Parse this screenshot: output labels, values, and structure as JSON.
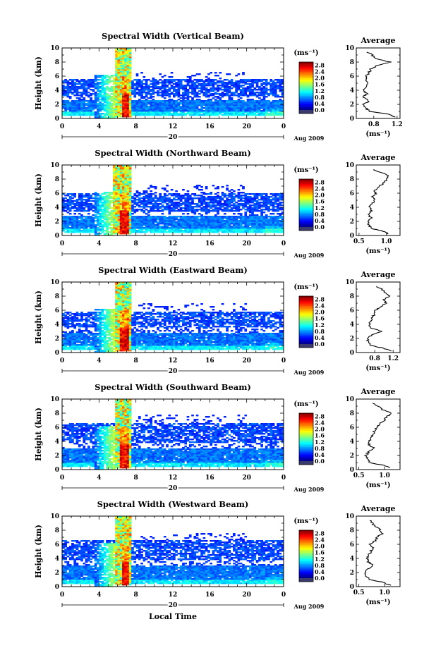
{
  "figure": {
    "xlabel": "Local Time",
    "date_label": "Aug 2009",
    "day_label": "20",
    "cbar_unit": "(ms⁻¹)",
    "avg_title": "Average",
    "avg_xlabel": "(ms⁻¹)"
  },
  "chart_data": [
    {
      "type": "heatmap",
      "title": "Spectral Width (Vertical Beam)",
      "ylabel": "Height (km)",
      "xlim": [
        0,
        24
      ],
      "ylim": [
        0,
        10
      ],
      "xticks": [
        "0",
        "4",
        "8",
        "12",
        "16",
        "20",
        "0"
      ],
      "yticks": [
        "0",
        "2",
        "4",
        "6",
        "8",
        "10"
      ],
      "colorbar": {
        "ticks": [
          "0.0",
          "0.4",
          "0.8",
          "1.2",
          "1.6",
          "2.0",
          "2.4",
          "2.8"
        ],
        "range": [
          0,
          3.0
        ]
      },
      "features": {
        "peak_band_hours": [
          5.8,
          7.5
        ],
        "upper_top_km": 5.5,
        "upper_band_km": [
          3.3,
          5.5
        ],
        "low_band_km": [
          0.4,
          2.6
        ]
      },
      "profile": {
        "title": "Average",
        "xlabel": "(ms⁻¹)",
        "xlim": [
          0.5,
          1.25
        ],
        "xticks": [
          "0.8",
          "1.2"
        ],
        "yticks": [
          "0",
          "2",
          "4",
          "6",
          "8",
          "10"
        ],
        "height_km": [
          0.2,
          0.6,
          1.0,
          1.5,
          2.0,
          2.5,
          3.0,
          3.5,
          4.0,
          4.5,
          5.0,
          5.5,
          6.0,
          6.5,
          7.0,
          7.5,
          8.0,
          8.5,
          9.0,
          9.5
        ],
        "width_ms": [
          1.18,
          1.05,
          0.72,
          0.66,
          0.63,
          0.72,
          0.62,
          0.68,
          0.63,
          0.66,
          0.71,
          0.67,
          0.66,
          0.72,
          0.75,
          0.86,
          1.08,
          0.83,
          0.77,
          0.68
        ]
      }
    },
    {
      "type": "heatmap",
      "title": "Spectral Width (Northward Beam)",
      "ylabel": "Height (km)",
      "xlim": [
        0,
        24
      ],
      "ylim": [
        0,
        10
      ],
      "xticks": [
        "0",
        "4",
        "8",
        "12",
        "16",
        "20",
        "0"
      ],
      "yticks": [
        "0",
        "2",
        "4",
        "6",
        "8",
        "10"
      ],
      "colorbar": {
        "ticks": [
          "0.0",
          "0.4",
          "0.8",
          "1.2",
          "1.6",
          "2.0",
          "2.4",
          "2.8"
        ],
        "range": [
          0,
          3.0
        ]
      },
      "features": {
        "peak_band_hours": [
          5.6,
          7.6
        ],
        "upper_top_km": 6.0,
        "upper_band_km": [
          3.5,
          6.0
        ],
        "low_band_km": [
          0.4,
          2.8
        ]
      },
      "profile": {
        "title": "Average",
        "xlabel": "(ms⁻¹)",
        "xlim": [
          0.45,
          1.25
        ],
        "xticks": [
          "0.5",
          "1.0"
        ],
        "yticks": [
          "0",
          "2",
          "4",
          "6",
          "8",
          "10"
        ],
        "height_km": [
          0.2,
          0.6,
          1.0,
          1.5,
          2.0,
          2.5,
          3.0,
          3.5,
          4.0,
          4.5,
          5.0,
          5.5,
          6.0,
          6.5,
          7.0,
          7.5,
          8.0,
          8.5,
          9.0,
          9.5
        ],
        "width_ms": [
          1.05,
          0.95,
          0.72,
          0.68,
          0.65,
          0.72,
          0.66,
          0.72,
          0.69,
          0.74,
          0.78,
          0.75,
          0.81,
          0.79,
          0.88,
          0.95,
          1.02,
          1.06,
          0.88,
          0.72
        ]
      }
    },
    {
      "type": "heatmap",
      "title": "Spectral Width (Eastward Beam)",
      "ylabel": "Height (km)",
      "xlim": [
        0,
        24
      ],
      "ylim": [
        0,
        10
      ],
      "xticks": [
        "0",
        "4",
        "8",
        "12",
        "16",
        "20",
        "0"
      ],
      "yticks": [
        "0",
        "2",
        "4",
        "6",
        "8",
        "10"
      ],
      "colorbar": {
        "ticks": [
          "0.0",
          "0.4",
          "0.8",
          "1.2",
          "1.6",
          "2.0",
          "2.4",
          "2.8"
        ],
        "range": [
          0,
          3.0
        ]
      },
      "features": {
        "peak_band_hours": [
          5.7,
          7.5
        ],
        "upper_top_km": 5.8,
        "upper_band_km": [
          3.6,
          5.8
        ],
        "low_band_km": [
          0.4,
          2.8
        ]
      },
      "profile": {
        "title": "Average",
        "xlabel": "(ms⁻¹)",
        "xlim": [
          0.4,
          1.35
        ],
        "xticks": [
          "0.8",
          "1.2"
        ],
        "yticks": [
          "0",
          "2",
          "4",
          "6",
          "8",
          "10"
        ],
        "height_km": [
          0.2,
          0.6,
          1.0,
          1.5,
          2.0,
          2.5,
          3.0,
          3.5,
          4.0,
          4.5,
          5.0,
          5.5,
          6.0,
          6.5,
          7.0,
          7.5,
          8.0,
          8.5,
          9.0,
          9.5
        ],
        "width_ms": [
          1.18,
          1.0,
          0.72,
          0.66,
          0.64,
          0.75,
          0.95,
          0.71,
          0.68,
          0.72,
          0.75,
          0.8,
          0.82,
          0.93,
          1.05,
          0.99,
          1.12,
          1.03,
          0.95,
          0.78
        ]
      }
    },
    {
      "type": "heatmap",
      "title": "Spectral Width (Southward Beam)",
      "ylabel": "Height (km)",
      "xlim": [
        0,
        24
      ],
      "ylim": [
        0,
        10
      ],
      "xticks": [
        "0",
        "4",
        "8",
        "12",
        "16",
        "20",
        "0"
      ],
      "yticks": [
        "0",
        "2",
        "4",
        "6",
        "8",
        "10"
      ],
      "colorbar": {
        "ticks": [
          "0.0",
          "0.4",
          "0.8",
          "1.2",
          "1.6",
          "2.0",
          "2.4",
          "2.8"
        ],
        "range": [
          0,
          3.0
        ]
      },
      "features": {
        "peak_band_hours": [
          5.7,
          7.6
        ],
        "upper_top_km": 6.6,
        "upper_band_km": [
          3.8,
          6.6
        ],
        "low_band_km": [
          0.4,
          2.9
        ]
      },
      "profile": {
        "title": "Average",
        "xlabel": "(ms⁻¹)",
        "xlim": [
          0.45,
          1.3
        ],
        "xticks": [
          "0.5",
          "1.0"
        ],
        "yticks": [
          "0",
          "2",
          "4",
          "6",
          "8",
          "10"
        ],
        "height_km": [
          0.2,
          0.6,
          1.0,
          1.5,
          2.0,
          2.5,
          3.0,
          3.5,
          4.0,
          4.5,
          5.0,
          5.5,
          6.0,
          6.5,
          7.0,
          7.5,
          8.0,
          8.5,
          9.0,
          9.5
        ],
        "width_ms": [
          1.12,
          0.98,
          0.72,
          0.66,
          0.64,
          0.69,
          0.8,
          0.7,
          0.7,
          0.74,
          0.78,
          0.8,
          0.86,
          0.9,
          0.99,
          1.05,
          1.12,
          0.96,
          0.88,
          0.74
        ]
      }
    },
    {
      "type": "heatmap",
      "title": "Spectral Width (Westward Beam)",
      "ylabel": "Height (km)",
      "xlim": [
        0,
        24
      ],
      "ylim": [
        0,
        10
      ],
      "xticks": [
        "0",
        "4",
        "8",
        "12",
        "16",
        "20",
        "0"
      ],
      "yticks": [
        "0",
        "2",
        "4",
        "6",
        "8",
        "10"
      ],
      "colorbar": {
        "ticks": [
          "0.0",
          "0.4",
          "0.8",
          "1.2",
          "1.6",
          "2.0",
          "2.4",
          "2.8"
        ],
        "range": [
          0,
          3.0
        ]
      },
      "features": {
        "peak_band_hours": [
          5.8,
          7.5
        ],
        "upper_top_km": 6.5,
        "upper_band_km": [
          3.8,
          6.5
        ],
        "low_band_km": [
          0.4,
          3.0
        ]
      },
      "profile": {
        "title": "Average",
        "xlabel": "(ms⁻¹)",
        "xlim": [
          0.45,
          1.3
        ],
        "xticks": [
          "0.5",
          "1.0"
        ],
        "yticks": [
          "0",
          "2",
          "4",
          "6",
          "8",
          "10"
        ],
        "height_km": [
          0.2,
          0.6,
          1.0,
          1.5,
          2.0,
          2.5,
          3.0,
          3.5,
          4.0,
          4.5,
          5.0,
          5.5,
          6.0,
          6.5,
          7.0,
          7.5,
          8.0,
          8.5,
          9.0,
          9.5
        ],
        "width_ms": [
          1.1,
          0.98,
          0.7,
          0.64,
          0.62,
          0.68,
          0.78,
          0.68,
          0.66,
          0.7,
          0.73,
          0.77,
          0.72,
          0.82,
          0.86,
          0.95,
          0.92,
          0.82,
          0.76,
          0.7
        ]
      }
    }
  ]
}
